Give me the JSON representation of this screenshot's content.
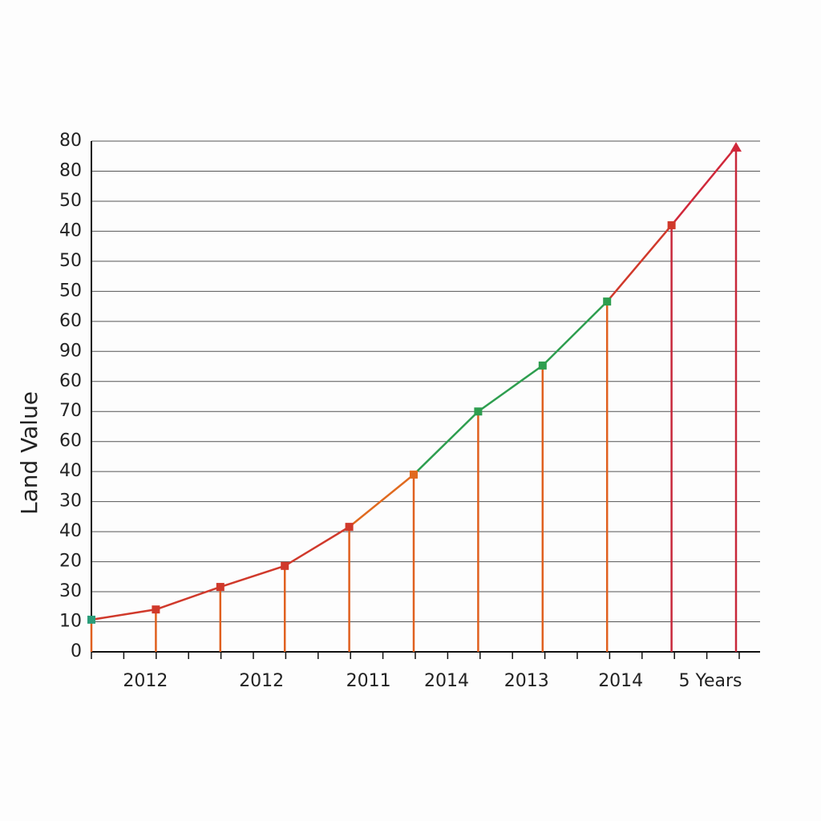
{
  "chart_data": {
    "type": "line",
    "y_label": "Land Value",
    "categories": [
      null,
      "2012",
      null,
      "2012",
      "2011",
      "2014",
      null,
      "2013",
      "2014",
      null,
      "5 Years"
    ],
    "series": [
      {
        "name": null,
        "color": "#d0392b",
        "values": [
          1.07,
          1.41,
          2.16,
          2.86,
          4.16,
          5.9,
          8.0,
          9.53,
          11.66,
          14.2,
          16.81
        ],
        "point_colors": [
          "#2a9d7a",
          "#d0392b",
          "#d0392b",
          "#d0392b",
          "#d0392b",
          "#e06a1f",
          "#2e9e4f",
          "#2e9e4f",
          "#2e9e4f",
          "#d0392b",
          "#d0283a"
        ]
      }
    ],
    "ylim": [
      0,
      17
    ],
    "yticks": [
      0,
      {
        "value": 1,
        "label": "10"
      },
      {
        "value": 2,
        "label": "30"
      },
      {
        "value": 3,
        "label": "20"
      },
      {
        "value": 4,
        "label": "40"
      },
      {
        "value": 5,
        "label": "30"
      },
      {
        "value": 6,
        "label": "40"
      },
      {
        "value": 7,
        "label": "60"
      },
      {
        "value": 8,
        "label": "70"
      },
      {
        "value": 9,
        "label": "60"
      },
      {
        "value": 10,
        "label": "90"
      },
      {
        "value": 11,
        "label": "60"
      },
      {
        "value": 12,
        "label": "50"
      },
      {
        "value": 13,
        "label": "50"
      },
      {
        "value": 14,
        "label": "40"
      },
      {
        "value": 15,
        "label": "50"
      },
      {
        "value": 16,
        "label": "80"
      },
      {
        "value": 17,
        "label": "80"
      }
    ],
    "grid": true
  }
}
